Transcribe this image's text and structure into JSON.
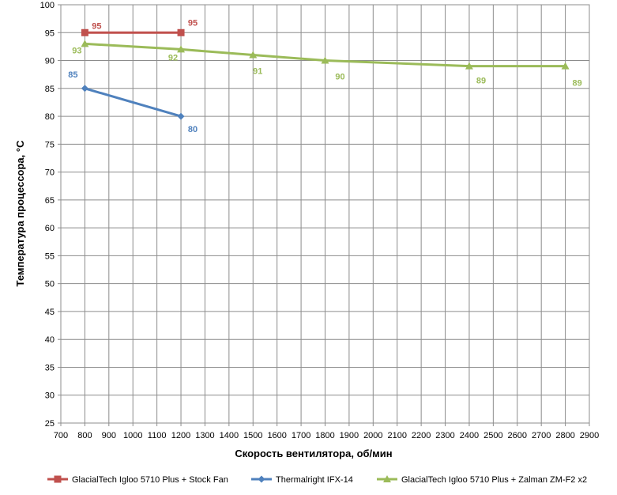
{
  "chart_data": {
    "type": "line",
    "xlabel": "Скорость вентилятора, об/мин",
    "ylabel": "Температура процессора, °С",
    "xlim": [
      700,
      2900
    ],
    "xstep": 100,
    "ylim": [
      25,
      100
    ],
    "ystep": 5,
    "grid": true,
    "legend_position": "bottom",
    "series": [
      {
        "name": "GlacialTech Igloo 5710 Plus + Stock Fan",
        "color": "#c0504d",
        "marker": "square",
        "x": [
          800,
          1200
        ],
        "y": [
          95,
          95
        ]
      },
      {
        "name": "Thermalright IFX-14",
        "color": "#4f81bd",
        "marker": "diamond",
        "x": [
          800,
          1200
        ],
        "y": [
          85,
          80
        ]
      },
      {
        "name": "GlacialTech Igloo 5710 Plus + Zalman ZM-F2 x2",
        "color": "#9bbb59",
        "marker": "triangle",
        "x": [
          800,
          1200,
          1500,
          1800,
          2400,
          2800
        ],
        "y": [
          93,
          92,
          91,
          90,
          89,
          89
        ]
      }
    ]
  }
}
